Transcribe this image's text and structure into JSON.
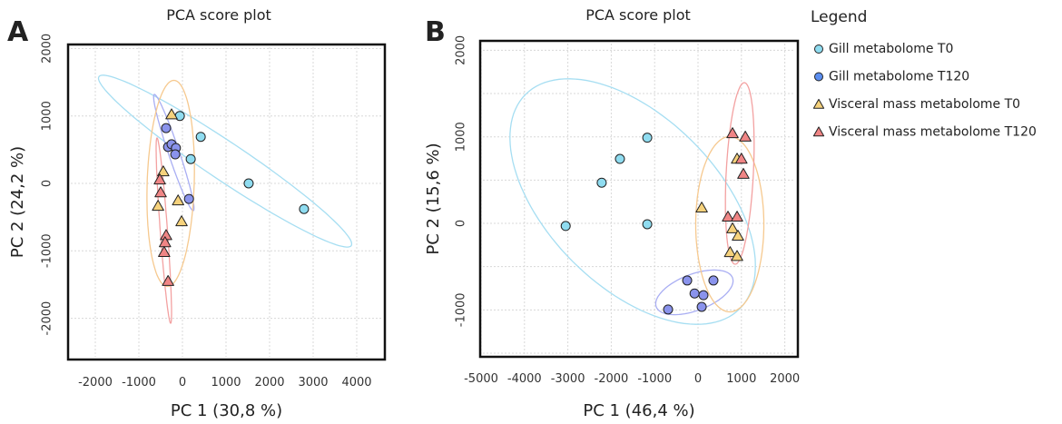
{
  "colors": {
    "gill_t0": "#8fdcf0",
    "gill_t120": "#6f8fee",
    "visc_t0": "#f6d27c",
    "visc_t120": "#f08585",
    "ell_gill_t0": "#a6def2",
    "ell_gill_t120": "#a9aef3",
    "ell_visc_t0": "#f6c98f",
    "ell_visc_t120": "#f3a1a1"
  },
  "legend": {
    "title": "Legend",
    "items": [
      {
        "label": "Gill metabolome T0",
        "marker": "circle",
        "color": "#8fdcf0"
      },
      {
        "label": "Gill metabolome T120",
        "marker": "circle",
        "color": "#5b8ef0"
      },
      {
        "label": "Visceral mass metabolome T0",
        "marker": "triangle",
        "color": "#f6d27c"
      },
      {
        "label": "Visceral mass metabolome T120",
        "marker": "triangle",
        "color": "#f08585"
      }
    ]
  },
  "chart_data": [
    {
      "type": "scatter",
      "panel": "A",
      "title": "PCA score plot",
      "xlabel": "PC 1 (30,8 %)",
      "ylabel": "PC 2 (24,2 %)",
      "xlim": [
        -2625,
        4646
      ],
      "ylim": [
        -2611,
        2059
      ],
      "xticks": [
        -2000,
        -1000,
        0,
        1000,
        2000,
        3000,
        4000
      ],
      "yticks": [
        -2000,
        -1000,
        0,
        1000,
        2000
      ],
      "xtick_labels": [
        "-2000",
        "-1000",
        "0",
        "1000",
        "2000",
        "3000",
        "4000"
      ],
      "ytick_labels": [
        "-2000",
        "-1000",
        "0",
        "1000",
        "2000"
      ],
      "grid": true,
      "series": [
        {
          "name": "Gill metabolome T0",
          "marker": "circle",
          "color": "#8fdcf0",
          "points": [
            [
              -60,
              1000
            ],
            [
              420,
              690
            ],
            [
              190,
              360
            ],
            [
              1520,
              0
            ],
            [
              2790,
              -380
            ]
          ],
          "ellipse": {
            "center": [
              979,
              330
            ],
            "u": [
              2896,
              -1252
            ],
            "v": [
              -242,
              -235
            ],
            "stroke": "#a6def2"
          }
        },
        {
          "name": "Gill metabolome T120",
          "marker": "circle",
          "color": "#8a93ec",
          "points": [
            [
              -375,
              820
            ],
            [
              -330,
              540
            ],
            [
              -250,
              580
            ],
            [
              -150,
              525
            ],
            [
              -165,
              430
            ],
            [
              150,
              -230
            ]
          ],
          "ellipse": {
            "center": [
              -198,
              457
            ],
            "u": [
              -448,
              861
            ],
            "v": [
              119,
              26
            ],
            "stroke": "#a9aef3"
          }
        },
        {
          "name": "Visceral mass metabolome T0",
          "marker": "triangle",
          "color": "#f6d27c",
          "points": [
            [
              -250,
              1020
            ],
            [
              -440,
              175
            ],
            [
              -100,
              -255
            ],
            [
              -560,
              -335
            ],
            [
              -20,
              -565
            ]
          ],
          "ellipse": {
            "center": [
              -270,
              0
            ],
            "u": [
              73,
              1528
            ],
            "v": [
              540,
              0
            ],
            "stroke": "#f6c98f"
          }
        },
        {
          "name": "Visceral mass metabolome T120",
          "marker": "triangle",
          "color": "#f08585",
          "points": [
            [
              -520,
              55
            ],
            [
              -500,
              -135
            ],
            [
              -375,
              -770
            ],
            [
              -400,
              -875
            ],
            [
              -420,
              -1020
            ],
            [
              -330,
              -1450
            ]
          ],
          "ellipse": {
            "center": [
              -427,
              -700
            ],
            "u": [
              -156,
              1373
            ],
            "v": [
              83,
              0
            ],
            "stroke": "#f3a1a1"
          }
        }
      ]
    },
    {
      "type": "scatter",
      "panel": "B",
      "title": "PCA score plot",
      "xlabel": "PC 1 (46,4 %)",
      "ylabel": "PC 2 (15,6 %)",
      "xlim": [
        -5021,
        2301
      ],
      "ylim": [
        -1542,
        2109
      ],
      "xticks": [
        -5000,
        -4000,
        -3000,
        -2000,
        -1000,
        0,
        1000,
        2000
      ],
      "yticks": [
        -1000,
        0,
        1000,
        2000
      ],
      "xtick_labels": [
        "-5000",
        "-4000",
        "-3000",
        "-2000",
        "-1000",
        "0",
        "1000",
        "2000"
      ],
      "ytick_labels": [
        "-1000",
        "0",
        "1000",
        "2000"
      ],
      "grid_y": [
        -1500,
        -1000,
        -500,
        0,
        500,
        1000,
        1500,
        2000
      ],
      "grid": true,
      "series": [
        {
          "name": "Gill metabolome T0",
          "marker": "circle",
          "color": "#8fdcf0",
          "points": [
            [
              -1170,
              990
            ],
            [
              -1800,
              745
            ],
            [
              -2220,
              470
            ],
            [
              -3050,
              -30
            ],
            [
              -1170,
              -10
            ]
          ],
          "ellipse": {
            "center": [
              -1506,
              252
            ],
            "u": [
              2469,
              -1238
            ],
            "v": [
              -1381,
              -693
            ],
            "stroke": "#a6def2"
          }
        },
        {
          "name": "Gill metabolome T120",
          "marker": "circle",
          "color": "#8a93ec",
          "points": [
            [
              -250,
              -660
            ],
            [
              355,
              -660
            ],
            [
              -80,
              -810
            ],
            [
              125,
              -830
            ],
            [
              85,
              -965
            ],
            [
              -690,
              -995
            ]
          ],
          "ellipse": {
            "center": [
              -84,
              -797
            ],
            "u": [
              879,
              168
            ],
            "v": [
              149,
              -196
            ],
            "stroke": "#a9aef3"
          }
        },
        {
          "name": "Visceral mass metabolome T0",
          "marker": "triangle",
          "color": "#f6d27c",
          "points": [
            [
              85,
              180
            ],
            [
              795,
              -60
            ],
            [
              920,
              -145
            ],
            [
              740,
              -335
            ],
            [
              900,
              -380
            ],
            [
              900,
              745
            ]
          ],
          "ellipse": {
            "center": [
              732,
              -10
            ],
            "u": [
              0,
              1013
            ],
            "v": [
              785,
              0
            ],
            "stroke": "#f6c98f"
          }
        },
        {
          "name": "Visceral mass metabolome T120",
          "marker": "triangle",
          "color": "#f08585",
          "points": [
            [
              795,
              1040
            ],
            [
              1090,
              1000
            ],
            [
              1000,
              745
            ],
            [
              1045,
              570
            ],
            [
              690,
              75
            ],
            [
              900,
              75
            ]
          ],
          "ellipse": {
            "center": [
              962,
              577
            ],
            "u": [
              105,
              1049
            ],
            "v": [
              314,
              0
            ],
            "stroke": "#f3a1a1"
          }
        }
      ]
    }
  ]
}
